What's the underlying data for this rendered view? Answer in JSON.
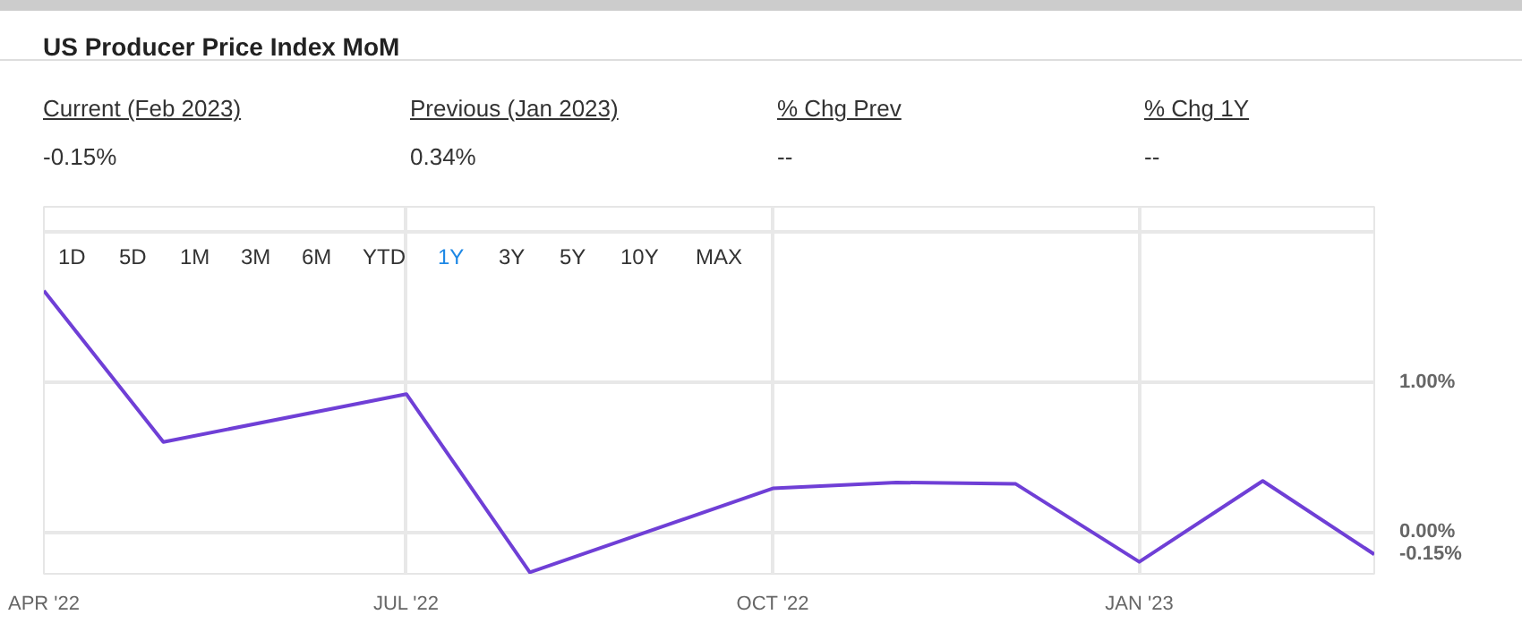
{
  "chart_data": {
    "type": "line",
    "title": "US Producer Price Index MoM",
    "annotations": [
      "Current (Feb 2023)",
      "-0.15%",
      "Previous (Jan 2023)",
      "0.34%",
      "% Chg Prev",
      "--",
      "% Chg 1Y",
      "--",
      "1D",
      "5D",
      "1M",
      "3M",
      "6M",
      "YTD",
      "1Y",
      "3Y",
      "5Y",
      "10Y",
      "MAX"
    ],
    "x": [
      "2022-04-01",
      "2022-05-01",
      "2022-07-01",
      "2022-08-01",
      "2022-10-01",
      "2022-11-01",
      "2022-12-01",
      "2023-01-01",
      "2023-02-01",
      "2023-03-01"
    ],
    "series": [
      {
        "color": "#6f3fd6",
        "values": [
          1.61,
          0.6,
          0.92,
          -0.27,
          0.29,
          0.33,
          0.32,
          -0.2,
          0.34,
          -0.15
        ],
        "value_labels": [
          null,
          null,
          null,
          null,
          null,
          null,
          null,
          null,
          null,
          "-0.15%"
        ]
      }
    ],
    "xlim": [
      "2022-04-01",
      "2023-03-01"
    ],
    "xticks": [
      {
        "value": "2022-04-01",
        "label": "APR '22"
      },
      {
        "value": "2022-07-01",
        "label": "JUL '22"
      },
      {
        "value": "2022-10-01",
        "label": "OCT '22"
      },
      {
        "value": "2023-01-01",
        "label": "JAN '23"
      }
    ],
    "ylim": [
      -0.28,
      2.17
    ],
    "yticks": [
      {
        "value": 0,
        "label": "0.00%"
      },
      {
        "value": 1,
        "label": "1.00%"
      },
      {
        "value": 2,
        "label": null
      }
    ],
    "grid": true,
    "marker": "none",
    "line_style": "solid"
  }
}
